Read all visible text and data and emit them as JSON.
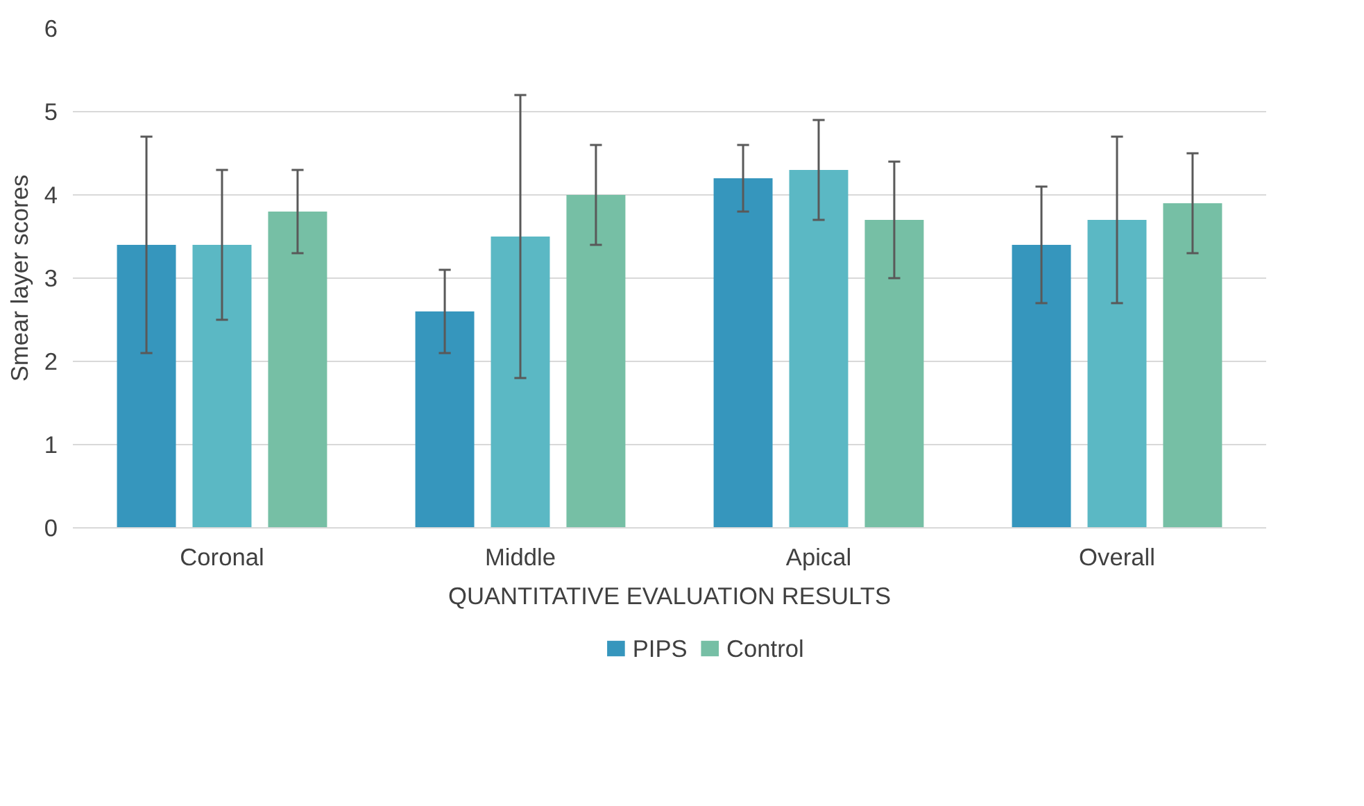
{
  "chart_data": {
    "type": "bar",
    "xlabel": "QUANTITATIVE EVALUATION RESULTS",
    "ylabel": "Smear layer scores",
    "categories": [
      "Coronal",
      "Middle",
      "Apical",
      "Overall"
    ],
    "series": [
      {
        "name": "PIPS",
        "color": "#3696bd",
        "values": [
          3.4,
          2.6,
          4.2,
          3.4
        ],
        "errors": [
          1.3,
          0.5,
          0.4,
          0.7
        ]
      },
      {
        "color": "#5bb8c4",
        "values": [
          3.4,
          3.5,
          4.3,
          3.7
        ],
        "errors": [
          0.9,
          1.7,
          0.6,
          1.0
        ]
      },
      {
        "name": "Control",
        "color": "#76bfa5",
        "values": [
          3.8,
          4.0,
          3.7,
          3.9
        ],
        "errors": [
          0.5,
          0.6,
          0.7,
          0.6
        ]
      }
    ],
    "ylim": [
      0,
      6
    ],
    "yticks": [
      0,
      1,
      2,
      3,
      4,
      5,
      6
    ],
    "grid": "y",
    "legend": "bottom"
  }
}
